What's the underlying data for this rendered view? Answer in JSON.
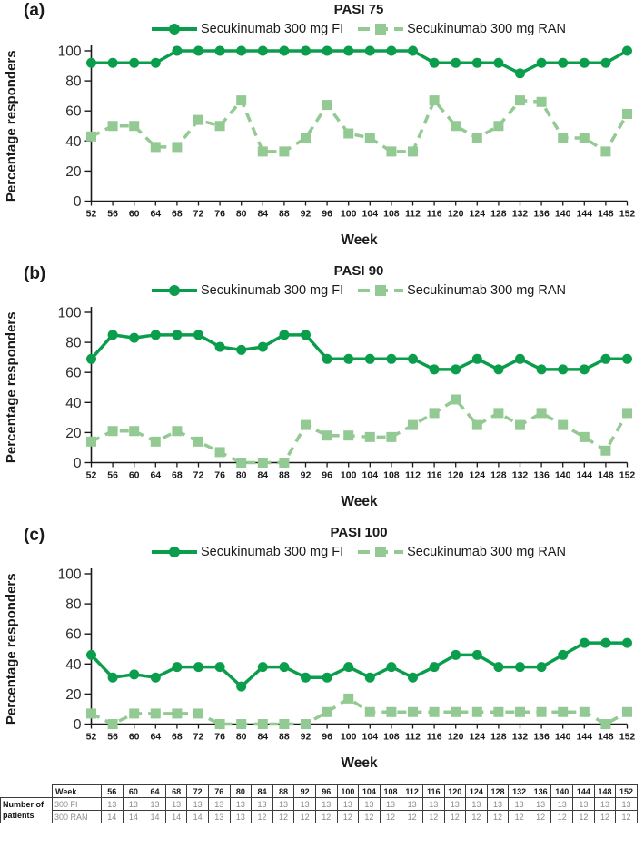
{
  "colors": {
    "fi": "#0a9d4b",
    "ran": "#93c993",
    "axis": "#1a1a1a",
    "text": "#1a1a1a",
    "y_tick_text": "#2b2b2b",
    "x_tick_text": "#1a1a1a",
    "table_border": "#3c3c3c",
    "table_muted": "#8a8a8a"
  },
  "chart_data": [
    {
      "type": "line",
      "panel_label": "(a)",
      "title": "PASI 75",
      "xlabel": "Week",
      "ylabel": "Percentage responders",
      "ylim": [
        0,
        100
      ],
      "y_ticks": [
        0,
        20,
        40,
        60,
        80,
        100
      ],
      "grid": false,
      "legend_position": "top",
      "x": [
        52,
        56,
        60,
        64,
        68,
        72,
        76,
        80,
        84,
        88,
        92,
        96,
        100,
        104,
        108,
        112,
        116,
        120,
        124,
        128,
        132,
        136,
        140,
        144,
        148,
        152
      ],
      "series": [
        {
          "name": "Secukinumab 300 mg FI",
          "color": "#0a9d4b",
          "marker": "circle",
          "line_style": "solid",
          "values": [
            92,
            92,
            92,
            92,
            100,
            100,
            100,
            100,
            100,
            100,
            100,
            100,
            100,
            100,
            100,
            100,
            92,
            92,
            92,
            92,
            85,
            92,
            92,
            92,
            92,
            100
          ]
        },
        {
          "name": "Secukinumab 300 mg RAN",
          "color": "#93c993",
          "marker": "square",
          "line_style": "dashed",
          "values": [
            43,
            50,
            50,
            36,
            36,
            54,
            50,
            67,
            33,
            33,
            42,
            64,
            45,
            42,
            33,
            33,
            67,
            50,
            42,
            50,
            67,
            66,
            42,
            42,
            33,
            58
          ]
        }
      ]
    },
    {
      "type": "line",
      "panel_label": "(b)",
      "title": "PASI 90",
      "xlabel": "Week",
      "ylabel": "Percentage responders",
      "ylim": [
        0,
        100
      ],
      "y_ticks": [
        0,
        20,
        40,
        60,
        80,
        100
      ],
      "grid": false,
      "legend_position": "top",
      "x": [
        52,
        56,
        60,
        64,
        68,
        72,
        76,
        80,
        84,
        88,
        92,
        96,
        100,
        104,
        108,
        112,
        116,
        120,
        124,
        128,
        132,
        136,
        140,
        144,
        148,
        152
      ],
      "series": [
        {
          "name": "Secukinumab 300 mg FI",
          "color": "#0a9d4b",
          "marker": "circle",
          "line_style": "solid",
          "values": [
            69,
            85,
            83,
            85,
            85,
            85,
            77,
            75,
            77,
            85,
            85,
            69,
            69,
            69,
            69,
            69,
            62,
            62,
            69,
            62,
            69,
            62,
            62,
            62,
            69,
            69
          ]
        },
        {
          "name": "Secukinumab 300 mg RAN",
          "color": "#93c993",
          "marker": "square",
          "line_style": "dashed",
          "values": [
            14,
            21,
            21,
            14,
            21,
            14,
            7,
            0,
            0,
            0,
            25,
            18,
            18,
            17,
            17,
            25,
            33,
            42,
            25,
            33,
            25,
            33,
            25,
            17,
            8,
            33
          ]
        }
      ]
    },
    {
      "type": "line",
      "panel_label": "(c)",
      "title": "PASI 100",
      "xlabel": "Week",
      "ylabel": "Percentage responders",
      "ylim": [
        0,
        100
      ],
      "y_ticks": [
        0,
        20,
        40,
        60,
        80,
        100
      ],
      "grid": false,
      "legend_position": "top",
      "x": [
        52,
        56,
        60,
        64,
        68,
        72,
        76,
        80,
        84,
        88,
        92,
        96,
        100,
        104,
        108,
        112,
        116,
        120,
        124,
        128,
        132,
        136,
        140,
        144,
        148,
        152
      ],
      "series": [
        {
          "name": "Secukinumab 300 mg FI",
          "color": "#0a9d4b",
          "marker": "circle",
          "line_style": "solid",
          "values": [
            46,
            31,
            33,
            31,
            38,
            38,
            38,
            25,
            38,
            38,
            31,
            31,
            38,
            31,
            38,
            31,
            38,
            46,
            46,
            38,
            38,
            38,
            46,
            54,
            54,
            54
          ]
        },
        {
          "name": "Secukinumab 300 mg RAN",
          "color": "#93c993",
          "marker": "square",
          "line_style": "dashed",
          "values": [
            7,
            0,
            7,
            7,
            7,
            7,
            0,
            0,
            0,
            0,
            0,
            8,
            17,
            8,
            8,
            8,
            8,
            8,
            8,
            8,
            8,
            8,
            8,
            8,
            0,
            8
          ]
        }
      ]
    }
  ],
  "table": {
    "side_label_lines": [
      "Number of",
      "patients"
    ],
    "header_label": "Week",
    "weeks": [
      56,
      60,
      64,
      68,
      72,
      76,
      80,
      84,
      88,
      92,
      96,
      100,
      104,
      108,
      112,
      116,
      120,
      124,
      128,
      132,
      136,
      140,
      144,
      148,
      152
    ],
    "rows": [
      {
        "label": "300 FI",
        "values": [
          13,
          13,
          13,
          13,
          13,
          13,
          13,
          13,
          13,
          13,
          13,
          13,
          13,
          13,
          13,
          13,
          13,
          13,
          13,
          13,
          13,
          13,
          13,
          13,
          13
        ]
      },
      {
        "label": "300 RAN",
        "values": [
          14,
          14,
          14,
          14,
          14,
          13,
          13,
          12,
          12,
          12,
          12,
          12,
          12,
          12,
          12,
          12,
          12,
          12,
          12,
          12,
          12,
          12,
          12,
          12,
          12
        ]
      }
    ]
  }
}
